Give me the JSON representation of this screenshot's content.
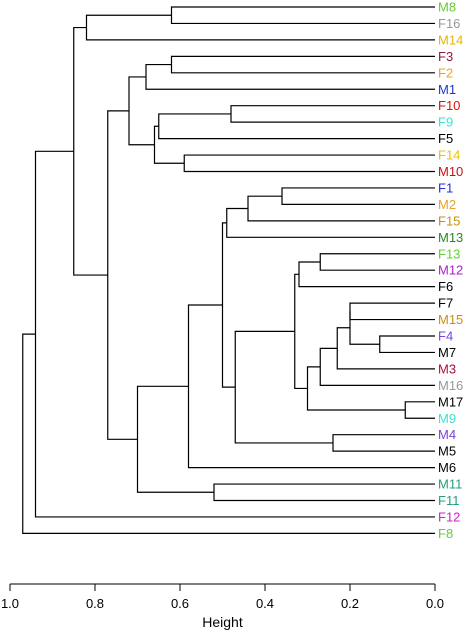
{
  "chart_data": {
    "type": "dendrogram",
    "title": "",
    "xlabel": "Height",
    "ylabel": "",
    "xlim": [
      1.0,
      0.0
    ],
    "x_ticks": [
      1.0,
      0.8,
      0.6,
      0.4,
      0.2,
      0.0
    ],
    "x_tick_labels": [
      "1.0",
      "0.8",
      "0.6",
      "0.4",
      "0.2",
      "0.0"
    ],
    "grid": false,
    "leaves": [
      {
        "label": "M8",
        "color": "#66cc33"
      },
      {
        "label": "F16",
        "color": "#999999"
      },
      {
        "label": "M14",
        "color": "#e6b800"
      },
      {
        "label": "F3",
        "color": "#8b1a3a"
      },
      {
        "label": "F2",
        "color": "#f0a020"
      },
      {
        "label": "M1",
        "color": "#2233cc"
      },
      {
        "label": "F10",
        "color": "#dd1111"
      },
      {
        "label": "F9",
        "color": "#40e0d0"
      },
      {
        "label": "F5",
        "color": "#000000"
      },
      {
        "label": "F14",
        "color": "#f0c000"
      },
      {
        "label": "M10",
        "color": "#cc1111"
      },
      {
        "label": "F1",
        "color": "#2233cc"
      },
      {
        "label": "M2",
        "color": "#f0a020"
      },
      {
        "label": "F15",
        "color": "#c89010"
      },
      {
        "label": "M13",
        "color": "#228b22"
      },
      {
        "label": "F13",
        "color": "#66cc33"
      },
      {
        "label": "M12",
        "color": "#aa22cc"
      },
      {
        "label": "F6",
        "color": "#000000"
      },
      {
        "label": "F7",
        "color": "#000000"
      },
      {
        "label": "M15",
        "color": "#c89010"
      },
      {
        "label": "F4",
        "color": "#7744dd"
      },
      {
        "label": "M7",
        "color": "#000000"
      },
      {
        "label": "M3",
        "color": "#aa1133"
      },
      {
        "label": "M16",
        "color": "#999999"
      },
      {
        "label": "M17",
        "color": "#000000"
      },
      {
        "label": "M9",
        "color": "#40e0d0"
      },
      {
        "label": "M4",
        "color": "#7744dd"
      },
      {
        "label": "M5",
        "color": "#000000"
      },
      {
        "label": "M6",
        "color": "#000000"
      },
      {
        "label": "M11",
        "color": "#20a080"
      },
      {
        "label": "F11",
        "color": "#20a080"
      },
      {
        "label": "F12",
        "color": "#cc22cc"
      },
      {
        "label": "F8",
        "color": "#66cc33"
      }
    ],
    "merges": [
      {
        "id": "n1",
        "height": 0.62,
        "children": [
          "M8",
          "F16"
        ]
      },
      {
        "id": "n2",
        "height": 0.82,
        "children": [
          "n1",
          "M14"
        ]
      },
      {
        "id": "n3",
        "height": 0.62,
        "children": [
          "F3",
          "F2"
        ]
      },
      {
        "id": "n4",
        "height": 0.68,
        "children": [
          "n3",
          "M1"
        ]
      },
      {
        "id": "n5",
        "height": 0.48,
        "children": [
          "F10",
          "F9"
        ]
      },
      {
        "id": "n6",
        "height": 0.65,
        "children": [
          "n5",
          "F5"
        ]
      },
      {
        "id": "n7",
        "height": 0.59,
        "children": [
          "F14",
          "M10"
        ]
      },
      {
        "id": "n8",
        "height": 0.66,
        "children": [
          "n6",
          "n7"
        ]
      },
      {
        "id": "n9",
        "height": 0.72,
        "children": [
          "n4",
          "n8"
        ]
      },
      {
        "id": "n10",
        "height": 0.36,
        "children": [
          "F1",
          "M2"
        ]
      },
      {
        "id": "n11",
        "height": 0.44,
        "children": [
          "n10",
          "F15"
        ]
      },
      {
        "id": "n12",
        "height": 0.49,
        "children": [
          "n11",
          "M13"
        ]
      },
      {
        "id": "n13",
        "height": 0.27,
        "children": [
          "F13",
          "M12"
        ]
      },
      {
        "id": "n14",
        "height": 0.32,
        "children": [
          "n13",
          "F6"
        ]
      },
      {
        "id": "n15",
        "height": 0.2,
        "children": [
          "F7",
          "M15"
        ]
      },
      {
        "id": "n16",
        "height": 0.13,
        "children": [
          "F4",
          "M7"
        ]
      },
      {
        "id": "n17",
        "height": 0.2,
        "children": [
          "n15",
          "n16"
        ]
      },
      {
        "id": "n18",
        "height": 0.23,
        "children": [
          "n17",
          "M3"
        ]
      },
      {
        "id": "n19",
        "height": 0.27,
        "children": [
          "n18",
          "M16"
        ]
      },
      {
        "id": "n20",
        "height": 0.07,
        "children": [
          "M17",
          "M9"
        ]
      },
      {
        "id": "n21",
        "height": 0.3,
        "children": [
          "n19",
          "n20"
        ]
      },
      {
        "id": "n22",
        "height": 0.33,
        "children": [
          "n14",
          "n21"
        ]
      },
      {
        "id": "n23",
        "height": 0.24,
        "children": [
          "M4",
          "M5"
        ]
      },
      {
        "id": "n24",
        "height": 0.47,
        "children": [
          "n22",
          "n23"
        ]
      },
      {
        "id": "n25",
        "height": 0.5,
        "children": [
          "n12",
          "n24"
        ]
      },
      {
        "id": "n26",
        "height": 0.58,
        "children": [
          "n25",
          "M6"
        ]
      },
      {
        "id": "n27",
        "height": 0.52,
        "children": [
          "M11",
          "F11"
        ]
      },
      {
        "id": "n28",
        "height": 0.7,
        "children": [
          "n26",
          "n27"
        ]
      },
      {
        "id": "n29",
        "height": 0.77,
        "children": [
          "n9",
          "n28"
        ]
      },
      {
        "id": "n30",
        "height": 0.85,
        "children": [
          "n2",
          "n29"
        ]
      },
      {
        "id": "n31",
        "height": 0.94,
        "children": [
          "n30",
          "F12"
        ]
      },
      {
        "id": "n32",
        "height": 0.97,
        "children": [
          "n31",
          "F8"
        ]
      }
    ]
  }
}
